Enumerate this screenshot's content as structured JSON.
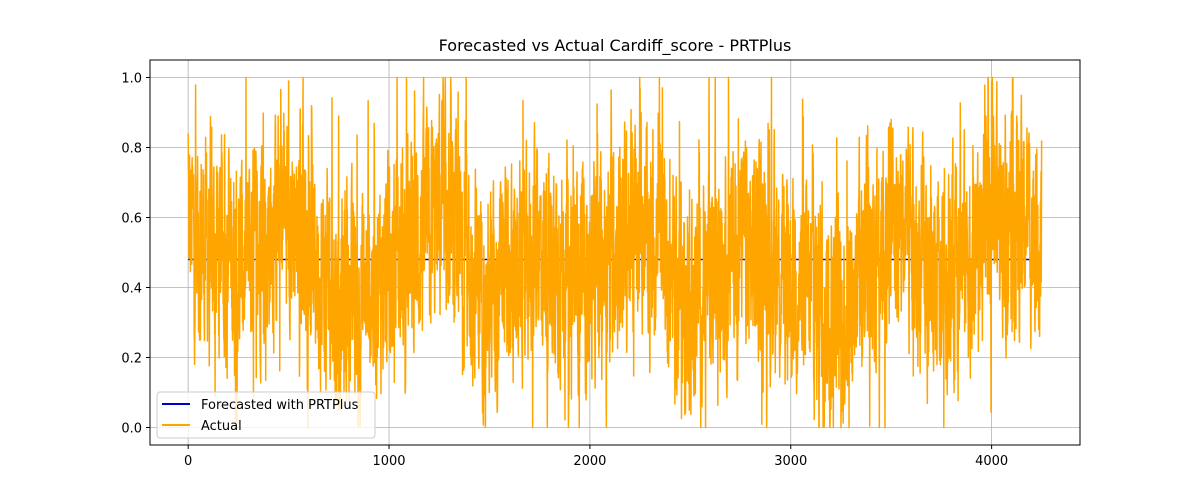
{
  "chart_data": {
    "type": "line",
    "title": "Forecasted vs Actual Cardiff_score - PRTPlus",
    "xlabel": "",
    "ylabel": "",
    "xlim": [
      -190,
      4440
    ],
    "ylim": [
      -0.05,
      1.05
    ],
    "x_ticks": [
      0,
      1000,
      2000,
      3000,
      4000
    ],
    "x_tick_labels": [
      "0",
      "1000",
      "2000",
      "3000",
      "4000"
    ],
    "y_ticks": [
      0.0,
      0.2,
      0.4,
      0.6,
      0.8,
      1.0
    ],
    "y_tick_labels": [
      "0.0",
      "0.2",
      "0.4",
      "0.6",
      "0.8",
      "1.0"
    ],
    "grid": true,
    "legend_position": "lower left",
    "n_points": 4250,
    "series": [
      {
        "name": "Forecasted with PRTPlus",
        "color": "#0000cd",
        "constant_value": 0.48,
        "x_start": 0,
        "x_end": 4249
      },
      {
        "name": "Actual",
        "color": "#ffa500",
        "x_start": 0,
        "x_end": 4249,
        "min": 0.0,
        "max": 1.0,
        "mean": 0.46,
        "sample_x": [
          0,
          250,
          500,
          750,
          1000,
          1250,
          1500,
          1750,
          2000,
          2250,
          2500,
          2750,
          3000,
          3250,
          3500,
          3750,
          4000,
          4249
        ],
        "sample_values": [
          0.84,
          0.45,
          0.99,
          0.05,
          0.4,
          0.9,
          0.15,
          0.62,
          0.35,
          0.97,
          0.08,
          0.7,
          0.3,
          0.0,
          0.88,
          0.2,
          0.99,
          0.82
        ]
      }
    ]
  }
}
